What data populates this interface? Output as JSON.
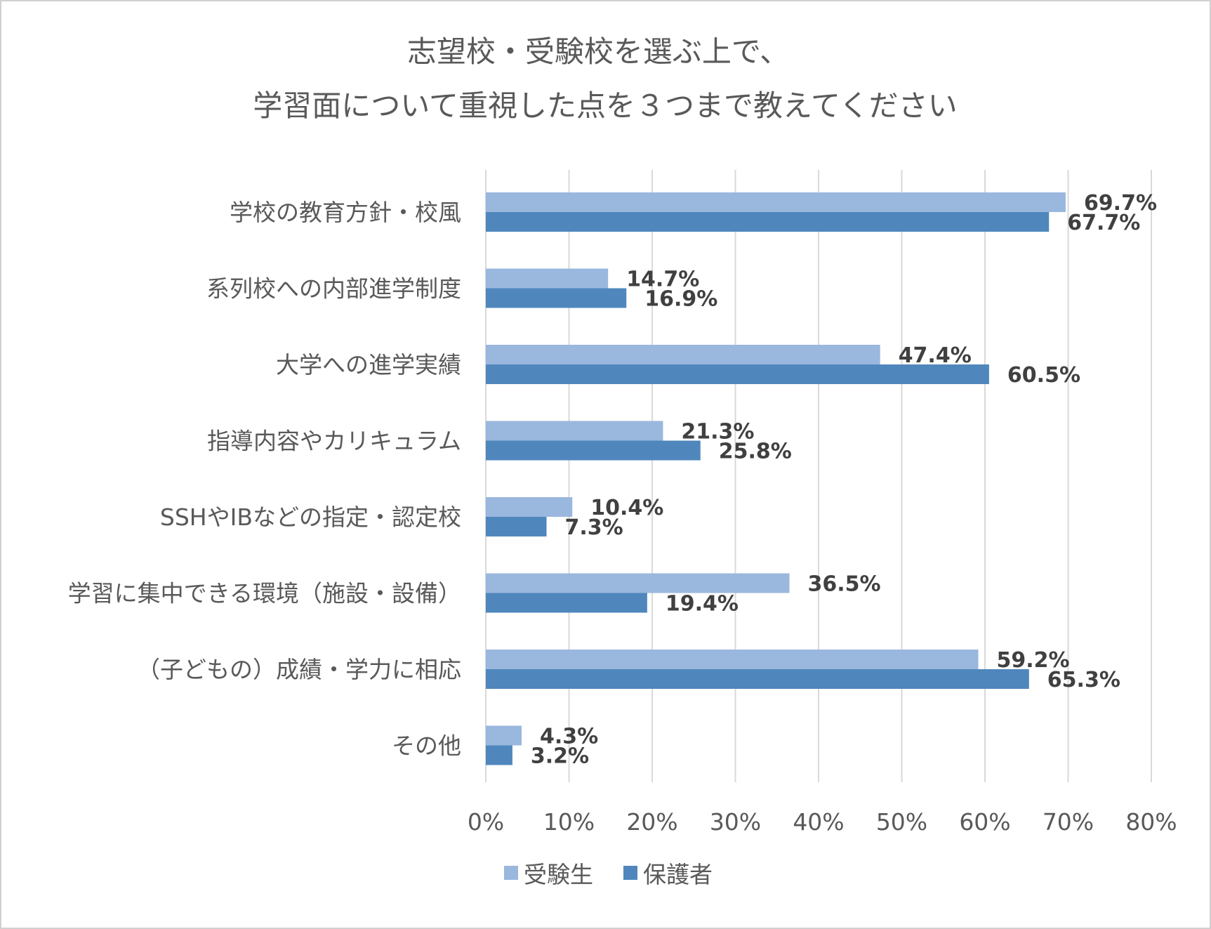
{
  "chart_data": {
    "type": "bar",
    "orientation": "horizontal",
    "title_lines": [
      "志望校・受験校を選ぶ上で、",
      "学習面について重視した点を３つまで教えてください"
    ],
    "categories": [
      "学校の教育方針・校風",
      "系列校への内部進学制度",
      "大学への進学実績",
      "指導内容やカリキュラム",
      "SSHやIBなどの指定・認定校",
      "学習に集中できる環境（施設・設備）",
      "（子どもの）成績・学力に相応",
      "その他"
    ],
    "series": [
      {
        "name": "受験生",
        "color": "#9ab7de",
        "values": [
          69.7,
          14.7,
          47.4,
          21.3,
          10.4,
          36.5,
          59.2,
          4.3
        ],
        "labels": [
          "69.7%",
          "14.7%",
          "47.4%",
          "21.3%",
          "10.4%",
          "36.5%",
          "59.2%",
          "4.3%"
        ]
      },
      {
        "name": "保護者",
        "color": "#4f87bd",
        "values": [
          67.7,
          16.9,
          60.5,
          25.8,
          7.3,
          19.4,
          65.3,
          3.2
        ],
        "labels": [
          "67.7%",
          "16.9%",
          "60.5%",
          "25.8%",
          "7.3%",
          "19.4%",
          "65.3%",
          "3.2%"
        ]
      }
    ],
    "xlim": [
      0,
      80
    ],
    "ticks": [
      0,
      10,
      20,
      30,
      40,
      50,
      60,
      70,
      80
    ],
    "tick_labels": [
      "0%",
      "10%",
      "20%",
      "30%",
      "40%",
      "50%",
      "60%",
      "70%",
      "80%"
    ],
    "grid": true,
    "legend_position": "bottom",
    "gridline_color": "#d9d9d9"
  }
}
